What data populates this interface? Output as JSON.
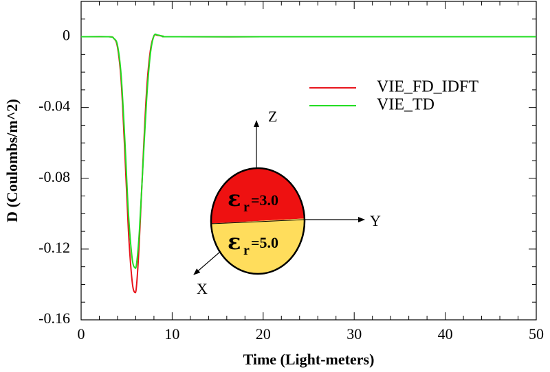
{
  "chart_data": {
    "type": "line",
    "xlabel": "Time (Light-meters)",
    "ylabel": "D (Coulombs/m^2)",
    "xlim": [
      0,
      50
    ],
    "ylim": [
      -0.16,
      0.02
    ],
    "xticks": [
      "0",
      "10",
      "20",
      "30",
      "40",
      "50"
    ],
    "yticks": [
      "0",
      "-0.04",
      "-0.08",
      "-0.12",
      "-0.16"
    ],
    "grid": false,
    "legend_position": "upper-right",
    "series": [
      {
        "name": "VIE_FD_IDFT",
        "color": "#e8141c",
        "x": [
          0,
          3.0,
          3.6,
          4.0,
          4.4,
          4.8,
          5.2,
          5.6,
          5.9,
          6.1,
          6.4,
          6.8,
          7.2,
          7.6,
          8.0,
          8.4,
          9.0,
          10.0,
          20.0,
          30.0,
          40.0,
          50.0
        ],
        "y": [
          0.0,
          0.0,
          -0.001,
          -0.006,
          -0.025,
          -0.065,
          -0.11,
          -0.138,
          -0.1445,
          -0.14,
          -0.115,
          -0.07,
          -0.03,
          -0.008,
          0.0005,
          0.0008,
          0.0003,
          0.0,
          0.0,
          0.0,
          0.0,
          0.0
        ]
      },
      {
        "name": "VIE_TD",
        "color": "#22dd22",
        "x": [
          0,
          3.0,
          3.6,
          4.0,
          4.4,
          4.8,
          5.2,
          5.6,
          5.9,
          6.1,
          6.4,
          6.8,
          7.2,
          7.6,
          8.0,
          8.4,
          9.0,
          10.0,
          20.0,
          30.0,
          40.0,
          50.0
        ],
        "y": [
          0.0,
          0.0,
          -0.001,
          -0.005,
          -0.022,
          -0.058,
          -0.1,
          -0.125,
          -0.1305,
          -0.128,
          -0.11,
          -0.072,
          -0.035,
          -0.01,
          0.0005,
          0.001,
          0.0003,
          0.0,
          0.0,
          0.0,
          0.0,
          0.0
        ]
      }
    ]
  },
  "inset": {
    "z_label": "Z",
    "y_label": "Y",
    "x_label": "X",
    "upper_region": {
      "symbol": "ε",
      "subscript": "r",
      "value": "=3.0",
      "color": "#ee1111"
    },
    "lower_region": {
      "symbol": "ε",
      "subscript": "r",
      "value": "=5.0",
      "color": "#ffdd5c"
    }
  }
}
